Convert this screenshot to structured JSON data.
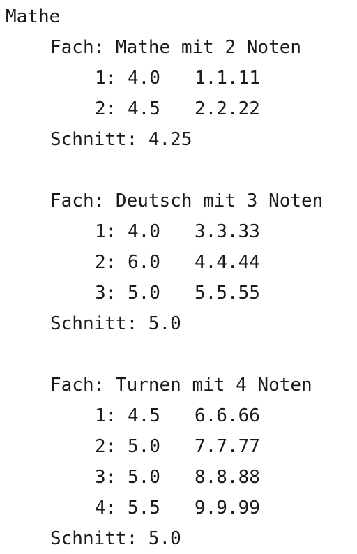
{
  "output": {
    "header": "Mathe",
    "subjects": [
      {
        "title": "Fach: Mathe mit 2 Noten",
        "grades": [
          {
            "index": "1:",
            "value": "4.0",
            "date": "1.1.11"
          },
          {
            "index": "2:",
            "value": "4.5",
            "date": "2.2.22"
          }
        ],
        "average": "Schnitt: 4.25"
      },
      {
        "title": "Fach: Deutsch mit 3 Noten",
        "grades": [
          {
            "index": "1:",
            "value": "4.0",
            "date": "3.3.33"
          },
          {
            "index": "2:",
            "value": "6.0",
            "date": "4.4.44"
          },
          {
            "index": "3:",
            "value": "5.0",
            "date": "5.5.55"
          }
        ],
        "average": "Schnitt: 5.0"
      },
      {
        "title": "Fach: Turnen mit 4 Noten",
        "grades": [
          {
            "index": "1:",
            "value": "4.5",
            "date": "6.6.66"
          },
          {
            "index": "2:",
            "value": "5.0",
            "date": "7.7.77"
          },
          {
            "index": "3:",
            "value": "5.0",
            "date": "8.8.88"
          },
          {
            "index": "4:",
            "value": "5.5",
            "date": "9.9.99"
          }
        ],
        "average": "Schnitt: 5.0"
      }
    ]
  }
}
